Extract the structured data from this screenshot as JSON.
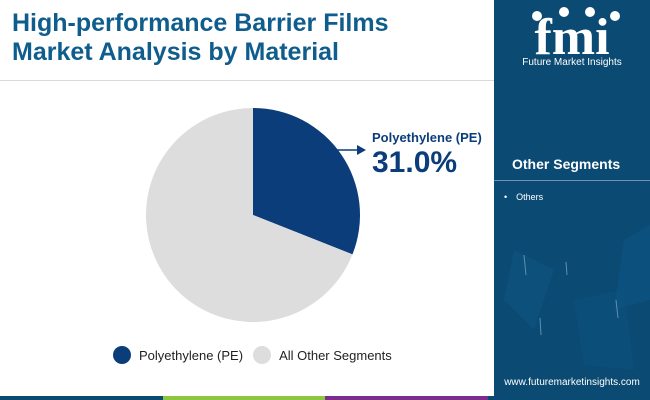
{
  "header": {
    "title_line1": "High-performance Barrier Films",
    "title_line2": "Market Analysis by Material"
  },
  "chart_data": {
    "type": "pie",
    "slices": [
      {
        "label": "Polyethylene (PE)",
        "value": 31.0,
        "color": "#0b3d7a"
      },
      {
        "label": "All Other Segments",
        "value": 69.0,
        "color": "#dddddd"
      }
    ],
    "callout": {
      "label": "Polyethylene (PE)",
      "value_text": "31.0%"
    },
    "legend": [
      "Polyethylene (PE)",
      "All Other Segments"
    ],
    "legend_position": "bottom"
  },
  "sidebar": {
    "brand_text": "fmi",
    "brand_caption": "Future Market Insights",
    "heading": "Other Segments",
    "items": [
      "Others"
    ],
    "url": "www.futuremarketinsights.com"
  },
  "colors": {
    "title": "#0f5d8c",
    "panel": "#0b4a73",
    "bottom_bar": [
      "#0b4a73",
      "#8dc63f",
      "#7b2d8e",
      "#0b4a73"
    ]
  }
}
